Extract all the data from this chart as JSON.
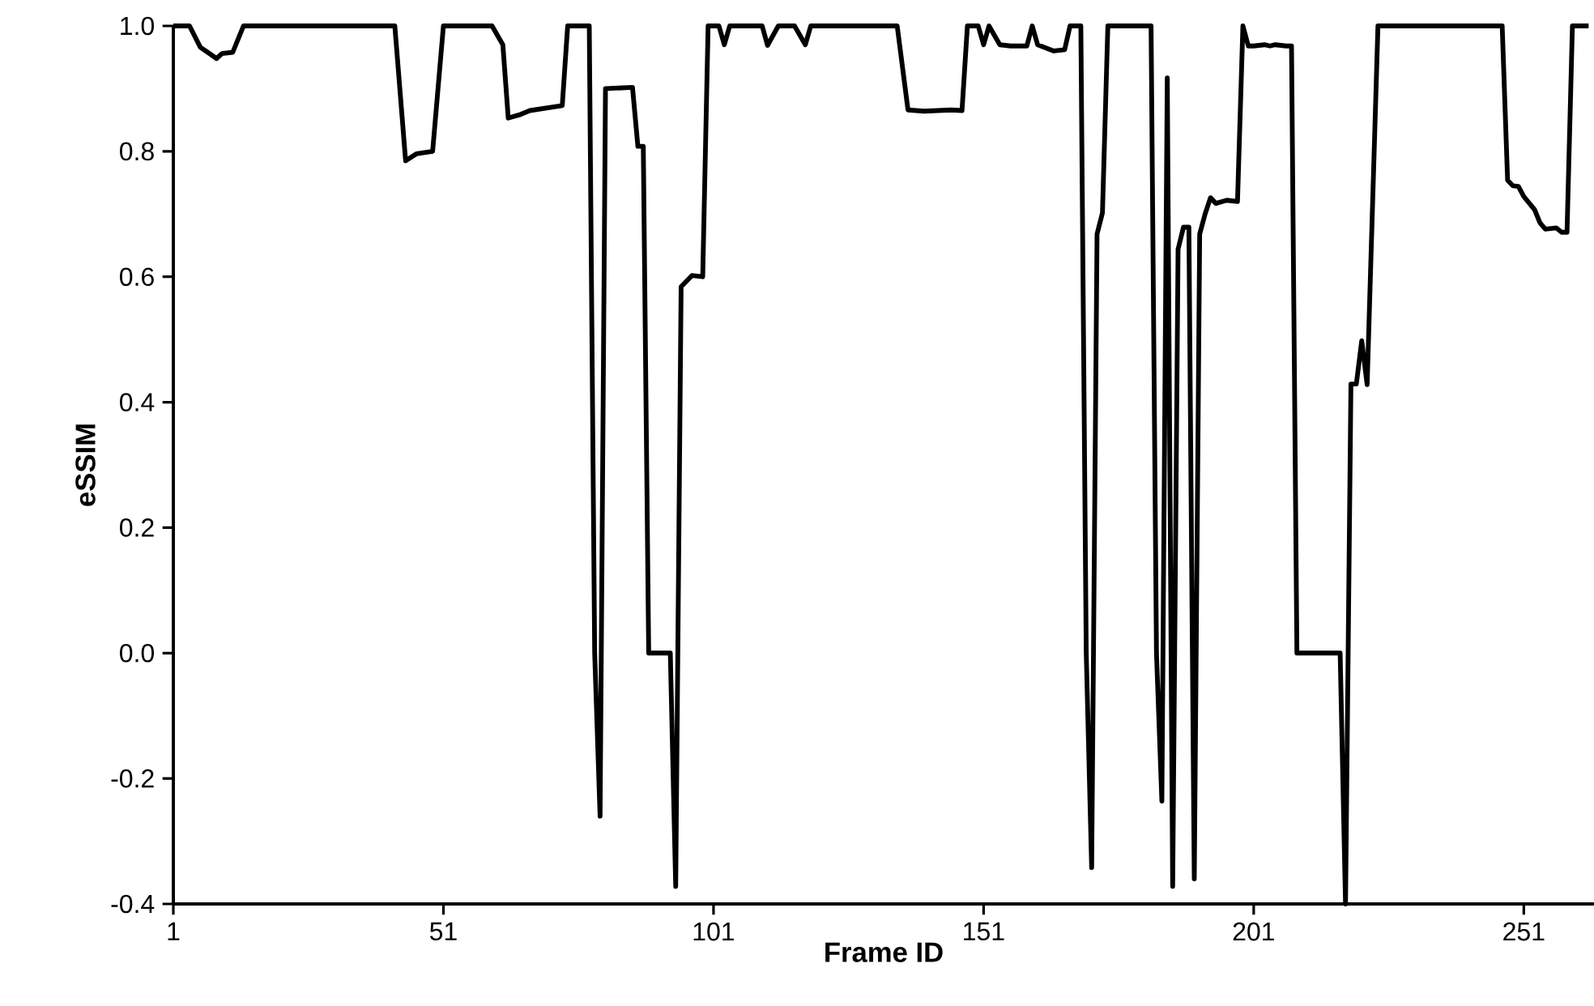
{
  "chart_data": {
    "type": "line",
    "xlabel": "Frame ID",
    "ylabel": "eSSIM",
    "color": "#000000",
    "marker": "none",
    "line_style": "solid",
    "grid": false,
    "xlim": [
      1,
      264
    ],
    "ylim": [
      -0.4,
      1.0
    ],
    "xticks": [
      1,
      51,
      101,
      151,
      201,
      251
    ],
    "yticks": [
      {
        "value": -0.4,
        "label": "-0.4"
      },
      {
        "value": -0.2,
        "label": "-0.2"
      },
      {
        "value": 0,
        "label": "0.0"
      },
      {
        "value": 0.2,
        "label": "0.2"
      },
      {
        "value": 0.4,
        "label": "0.4"
      },
      {
        "value": 0.6,
        "label": "0.6"
      },
      {
        "value": 0.8,
        "label": "0.8"
      },
      {
        "value": 1.0,
        "label": "1.0"
      }
    ],
    "x": [
      1,
      4,
      6,
      9,
      10,
      12,
      14,
      42,
      44,
      46,
      49,
      51,
      60,
      62,
      63,
      65,
      67,
      73,
      74,
      78,
      79,
      80,
      81,
      86,
      87,
      88,
      89,
      93,
      94,
      95,
      97,
      99,
      100,
      102,
      103,
      104,
      110,
      111,
      113,
      116,
      118,
      119,
      135,
      137,
      140,
      145,
      147,
      148,
      150,
      151,
      152,
      154,
      156,
      159,
      160,
      161,
      164,
      166,
      167,
      169,
      170,
      171,
      172,
      173,
      174,
      182,
      183,
      184,
      185,
      186,
      187,
      188,
      189,
      190,
      191,
      192,
      193,
      194,
      196,
      198,
      199,
      200,
      201,
      203,
      204,
      205,
      207,
      208,
      209,
      217,
      218,
      219,
      220,
      221,
      222,
      224,
      247,
      248,
      249,
      250,
      251,
      253,
      254,
      255,
      257,
      258,
      259,
      260,
      263
    ],
    "values": [
      1.0,
      1.0,
      0.966,
      0.948,
      0.956,
      0.958,
      1.0,
      1.0,
      0.785,
      0.796,
      0.8,
      1.0,
      1.0,
      0.97,
      0.853,
      0.858,
      0.865,
      0.873,
      1.0,
      1.0,
      0.0,
      -0.26,
      0.9,
      0.902,
      0.808,
      0.808,
      0.0,
      0.0,
      -0.372,
      0.584,
      0.602,
      0.6,
      1.0,
      1.0,
      0.97,
      1.0,
      1.0,
      0.969,
      1.0,
      1.0,
      0.97,
      1.0,
      1.0,
      0.866,
      0.864,
      0.866,
      0.865,
      1.0,
      1.0,
      0.97,
      1.0,
      0.97,
      0.968,
      0.968,
      1.0,
      0.97,
      0.96,
      0.962,
      1.0,
      1.0,
      0.0,
      -0.342,
      0.668,
      0.702,
      1.0,
      1.0,
      0.0,
      -0.236,
      0.917,
      -0.372,
      0.644,
      0.679,
      0.679,
      -0.36,
      0.668,
      0.7,
      0.726,
      0.717,
      0.722,
      0.72,
      1.0,
      0.968,
      0.968,
      0.97,
      0.968,
      0.97,
      0.968,
      0.968,
      0.0,
      0.0,
      -0.4,
      0.429,
      0.429,
      0.498,
      0.428,
      1.0,
      1.0,
      0.754,
      0.745,
      0.744,
      0.728,
      0.707,
      0.686,
      0.676,
      0.678,
      0.671,
      0.671,
      1.0,
      1.0
    ]
  }
}
